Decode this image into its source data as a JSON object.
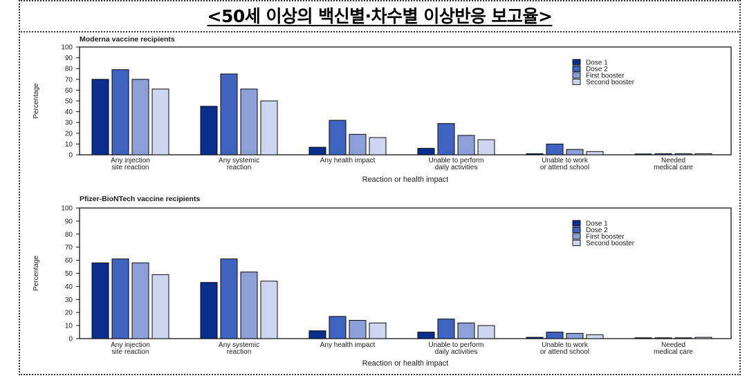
{
  "page": {
    "title": "<50세 이상의 백신별·차수별 이상반응 보고율>"
  },
  "series_colors": [
    "#0b2d8c",
    "#3f63be",
    "#8c9fd6",
    "#cdd6ee"
  ],
  "chart_data": [
    {
      "type": "bar",
      "title": "Moderna vaccine recipients",
      "xlabel": "Reaction or health impact",
      "ylabel": "Percentage",
      "ylim": [
        0,
        100
      ],
      "yticks": [
        0,
        10,
        20,
        30,
        40,
        50,
        60,
        70,
        80,
        90,
        100
      ],
      "grid": false,
      "legend_position": "top-right",
      "categories": [
        [
          "Any injection",
          "site reaction"
        ],
        [
          "Any systemic",
          "reaction"
        ],
        [
          "Any health impact"
        ],
        [
          "Unable to perform",
          "daily activities"
        ],
        [
          "Unable to work",
          "or attend school"
        ],
        [
          "Needed",
          "medical care"
        ]
      ],
      "series": [
        {
          "name": "Dose 1",
          "values": [
            70,
            45,
            7,
            6,
            1,
            0
          ]
        },
        {
          "name": "Dose 2",
          "values": [
            79,
            75,
            32,
            29,
            10,
            1
          ]
        },
        {
          "name": "First booster",
          "values": [
            70,
            61,
            19,
            18,
            5,
            1
          ]
        },
        {
          "name": "Second booster",
          "values": [
            61,
            50,
            16,
            14,
            3,
            1
          ]
        }
      ]
    },
    {
      "type": "bar",
      "title": "Pfizer-BioNTech vaccine recipients",
      "xlabel": "Reaction or health impact",
      "ylabel": "Percentage",
      "ylim": [
        0,
        100
      ],
      "yticks": [
        0,
        10,
        20,
        30,
        40,
        50,
        60,
        70,
        80,
        90,
        100
      ],
      "grid": false,
      "legend_position": "top-right",
      "categories": [
        [
          "Any injection",
          "site reaction"
        ],
        [
          "Any systemic",
          "reaction"
        ],
        [
          "Any health impact"
        ],
        [
          "Unable to perform",
          "daily activities"
        ],
        [
          "Unable to work",
          "or attend school"
        ],
        [
          "Needed",
          "medical care"
        ]
      ],
      "series": [
        {
          "name": "Dose 1",
          "values": [
            58,
            43,
            6,
            5,
            1,
            0
          ]
        },
        {
          "name": "Dose 2",
          "values": [
            61,
            61,
            17,
            15,
            5,
            0
          ]
        },
        {
          "name": "First booster",
          "values": [
            58,
            51,
            14,
            12,
            4,
            0
          ]
        },
        {
          "name": "Second booster",
          "values": [
            49,
            44,
            12,
            10,
            3,
            1
          ]
        }
      ]
    }
  ]
}
